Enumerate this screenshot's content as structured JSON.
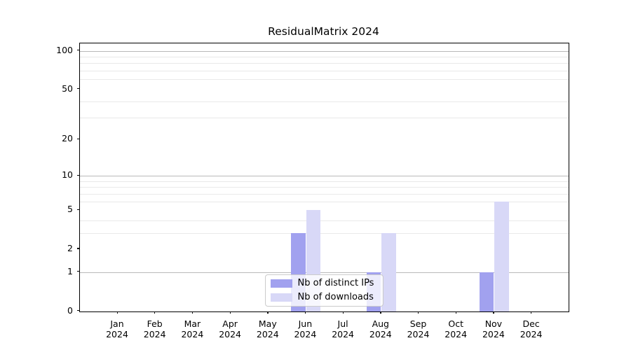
{
  "chart_data": {
    "type": "bar",
    "title": "ResidualMatrix 2024",
    "categories": [
      "Jan",
      "Feb",
      "Mar",
      "Apr",
      "May",
      "Jun",
      "Jul",
      "Aug",
      "Sep",
      "Oct",
      "Nov",
      "Dec"
    ],
    "category_year": "2024",
    "series": [
      {
        "name": "Nb of distinct IPs",
        "color": "#a1a1ef",
        "values": [
          0,
          0,
          0,
          0,
          0,
          3,
          0,
          1,
          0,
          0,
          1,
          0
        ]
      },
      {
        "name": "Nb of downloads",
        "color": "#d8d8f7",
        "values": [
          0,
          0,
          0,
          0,
          0,
          5,
          0,
          3,
          0,
          0,
          6,
          0
        ]
      }
    ],
    "xlabel": "",
    "ylabel": "",
    "y_axis": {
      "scale": "log1p",
      "tick_labels": [
        "0",
        "1",
        "2",
        "5",
        "10",
        "20",
        "50",
        "100"
      ],
      "tick_values": [
        0,
        1,
        2,
        5,
        10,
        20,
        50,
        100
      ],
      "major_grid_values": [
        1,
        10,
        100
      ],
      "minor_grid_values": [
        3,
        4,
        6,
        7,
        8,
        9,
        30,
        40,
        60,
        70,
        80,
        90
      ],
      "ylim": [
        0,
        113
      ]
    },
    "legend": {
      "position": "lower center",
      "entries": [
        "Nb of distinct IPs",
        "Nb of downloads"
      ]
    },
    "grid": true,
    "colors": {
      "major_grid": "#b9b9b9",
      "minor_grid": "#e9e9e9",
      "axis": "#000000",
      "text": "#000000",
      "background": "#ffffff",
      "legend_border": "#cbcbcb"
    }
  }
}
